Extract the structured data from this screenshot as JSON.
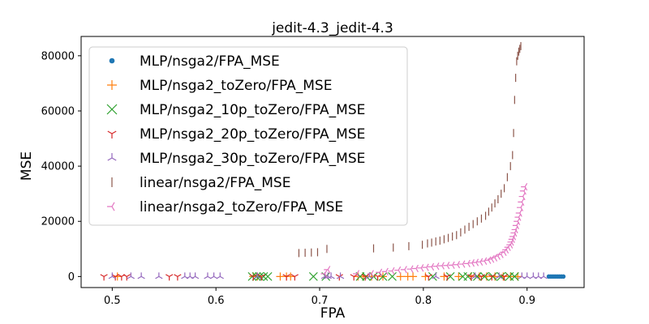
{
  "chart_data": {
    "type": "scatter",
    "title": "jedit-4.3_jedit-4.3",
    "xlabel": "FPA",
    "ylabel": "MSE",
    "xlim": [
      0.47,
      0.955
    ],
    "ylim": [
      -4000,
      87000
    ],
    "xticks": [
      "0.5",
      "0.6",
      "0.7",
      "0.8",
      "0.9"
    ],
    "xtick_values": [
      0.5,
      0.6,
      0.7,
      0.8,
      0.9
    ],
    "yticks": [
      "0",
      "20000",
      "40000",
      "60000",
      "80000"
    ],
    "ytick_values": [
      0,
      20000,
      40000,
      60000,
      80000
    ],
    "grid": false,
    "legend_position": "upper-left",
    "series": [
      {
        "name": "MLP/nsga2/FPA_MSE",
        "marker": "circle",
        "color": "#1f77b4",
        "x": [
          0.921,
          0.923,
          0.925,
          0.927,
          0.929,
          0.931,
          0.933,
          0.935
        ],
        "y": [
          0,
          0,
          0,
          0,
          0,
          0,
          0,
          0
        ]
      },
      {
        "name": "MLP/nsga2_toZero/FPA_MSE",
        "marker": "plus",
        "color": "#ff7f0e",
        "x": [
          0.505,
          0.636,
          0.64,
          0.662,
          0.668,
          0.672,
          0.737,
          0.742,
          0.75,
          0.761,
          0.778,
          0.785,
          0.79,
          0.802,
          0.82,
          0.834,
          0.846,
          0.854,
          0.861,
          0.869,
          0.877,
          0.884,
          0.891
        ],
        "y": [
          0,
          0,
          0,
          0,
          0,
          0,
          0,
          0,
          0,
          0,
          0,
          0,
          0,
          0,
          0,
          0,
          0,
          0,
          0,
          0,
          0,
          0,
          0
        ]
      },
      {
        "name": "MLP/nsga2_10p_toZero/FPA_MSE",
        "marker": "x",
        "color": "#2ca02c",
        "x": [
          0.635,
          0.639,
          0.642,
          0.646,
          0.65,
          0.694,
          0.706,
          0.739,
          0.745,
          0.752,
          0.761,
          0.77,
          0.809,
          0.826,
          0.838,
          0.843,
          0.852,
          0.859,
          0.867,
          0.875,
          0.883,
          0.888
        ],
        "y": [
          0,
          0,
          0,
          0,
          0,
          0,
          0,
          0,
          0,
          0,
          0,
          0,
          0,
          0,
          0,
          0,
          0,
          0,
          0,
          0,
          0,
          0
        ]
      },
      {
        "name": "MLP/nsga2_20p_toZero/FPA_MSE",
        "marker": "tri_down",
        "color": "#d62728",
        "x": [
          0.492,
          0.503,
          0.509,
          0.514,
          0.555,
          0.563,
          0.636,
          0.644,
          0.668,
          0.676,
          0.719,
          0.733,
          0.744,
          0.756,
          0.805,
          0.823,
          0.846,
          0.856,
          0.866,
          0.878
        ],
        "y": [
          0,
          0,
          0,
          0,
          0,
          0,
          0,
          0,
          0,
          0,
          0,
          0,
          0,
          0,
          0,
          0,
          0,
          0,
          0,
          0
        ]
      },
      {
        "name": "MLP/nsga2_30p_toZero/FPA_MSE",
        "marker": "tri_up",
        "color": "#9467bd",
        "x": [
          0.5,
          0.518,
          0.528,
          0.545,
          0.57,
          0.575,
          0.58,
          0.592,
          0.598,
          0.604,
          0.64,
          0.705,
          0.708,
          0.711,
          0.72,
          0.748,
          0.812,
          0.85,
          0.873,
          0.895,
          0.9,
          0.906,
          0.911,
          0.916
        ],
        "y": [
          0,
          0,
          0,
          0,
          0,
          0,
          0,
          0,
          0,
          0,
          0,
          0,
          0,
          0,
          0,
          0,
          0,
          0,
          0,
          0,
          0,
          0,
          0,
          0
        ]
      },
      {
        "name": "linear/nsga2/FPA_MSE",
        "marker": "vline",
        "color": "#8c564b",
        "x": [
          0.68,
          0.686,
          0.692,
          0.698,
          0.707,
          0.752,
          0.771,
          0.786,
          0.799,
          0.804,
          0.808,
          0.812,
          0.816,
          0.82,
          0.824,
          0.828,
          0.832,
          0.836,
          0.84,
          0.844,
          0.848,
          0.852,
          0.856,
          0.86,
          0.863,
          0.866,
          0.869,
          0.872,
          0.875,
          0.878,
          0.881,
          0.884,
          0.886,
          0.887,
          0.888,
          0.889,
          0.89,
          0.891,
          0.892,
          0.893,
          0.894
        ],
        "y": [
          8500,
          8600,
          8700,
          8800,
          10000,
          10200,
          10500,
          11000,
          11500,
          12000,
          12300,
          12700,
          13000,
          13500,
          14000,
          14500,
          15000,
          16000,
          17000,
          18000,
          19000,
          20000,
          21000,
          22000,
          23500,
          25000,
          26500,
          28000,
          30000,
          32000,
          36000,
          40000,
          44000,
          52000,
          64000,
          72000,
          78000,
          80000,
          81500,
          82500,
          83500
        ]
      },
      {
        "name": "linear/nsga2_toZero/FPA_MSE",
        "marker": "tri_left",
        "color": "#e377c2",
        "x": [
          0.705,
          0.708,
          0.736,
          0.75,
          0.758,
          0.764,
          0.77,
          0.776,
          0.782,
          0.788,
          0.793,
          0.798,
          0.803,
          0.808,
          0.813,
          0.818,
          0.823,
          0.828,
          0.833,
          0.838,
          0.843,
          0.847,
          0.851,
          0.855,
          0.859,
          0.863,
          0.866,
          0.869,
          0.872,
          0.875,
          0.878,
          0.88,
          0.882,
          0.884,
          0.885,
          0.886,
          0.887,
          0.888,
          0.889,
          0.89,
          0.891,
          0.892,
          0.893,
          0.894,
          0.895,
          0.896,
          0.897,
          0.898
        ],
        "y": [
          1000,
          2500,
          1000,
          1000,
          1500,
          1800,
          2000,
          2300,
          2500,
          2700,
          2900,
          3100,
          3300,
          3500,
          3700,
          3900,
          4000,
          4100,
          4300,
          4500,
          4700,
          4900,
          5100,
          5300,
          5600,
          5900,
          6300,
          6800,
          7400,
          8000,
          8800,
          9700,
          10600,
          11500,
          12500,
          13500,
          14500,
          15800,
          17000,
          18500,
          20000,
          21500,
          23000,
          25000,
          27000,
          29000,
          31000,
          32500
        ]
      }
    ]
  }
}
